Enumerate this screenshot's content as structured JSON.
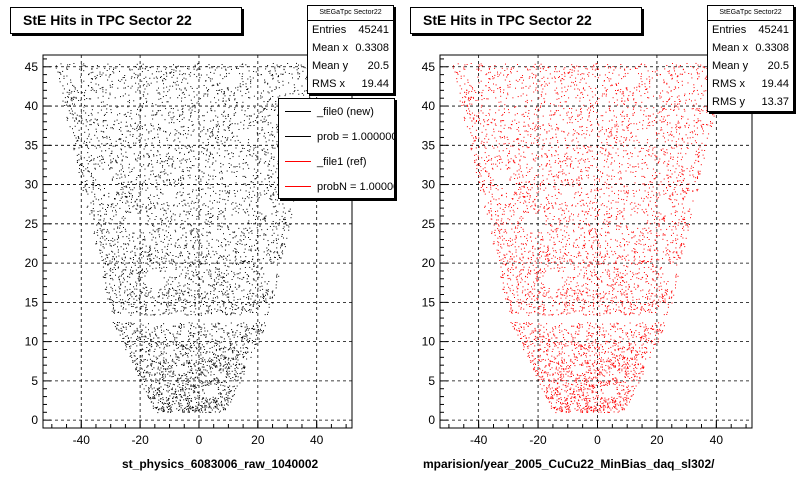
{
  "footer_text": "",
  "chart_data": [
    {
      "type": "scatter",
      "title": "StE Hits in TPC Sector 22",
      "xlabel": "st_physics_6083006_raw_1040002",
      "ylabel": "",
      "xlim": [
        -53,
        52
      ],
      "ylim": [
        -1,
        46.5
      ],
      "x_ticks": [
        -40,
        -20,
        0,
        20,
        40
      ],
      "y_ticks": [
        0,
        5,
        10,
        15,
        20,
        25,
        30,
        35,
        40,
        45
      ],
      "grid": true,
      "marker_color": "#000000",
      "stats": {
        "header": "StEGaTpc Sector22",
        "rows": [
          {
            "label": "Entries",
            "value": "45241"
          },
          {
            "label": "Mean x",
            "value": "0.3308"
          },
          {
            "label": "Mean y",
            "value": "20.5"
          },
          {
            "label": "RMS x",
            "value": "19.44"
          }
        ]
      },
      "legend": {
        "position": "top-right",
        "entries": [
          {
            "label": "_file0 (new)",
            "color": "#000000"
          },
          {
            "label": "prob = 1.000000",
            "color": "#000000"
          },
          {
            "label": "_file1 (ref)",
            "color": "#ff0000"
          },
          {
            "label": "probN = 1.000000",
            "color": "#ff0000"
          }
        ]
      }
    },
    {
      "type": "scatter",
      "title": "StE Hits in TPC Sector 22",
      "xlabel": "mparision/year_2005_CuCu22_MinBias_daq_sl302/",
      "ylabel": "",
      "xlim": [
        -53,
        52
      ],
      "ylim": [
        -1,
        46.5
      ],
      "x_ticks": [
        -40,
        -20,
        0,
        20,
        40
      ],
      "y_ticks": [
        0,
        5,
        10,
        15,
        20,
        25,
        30,
        35,
        40,
        45
      ],
      "grid": true,
      "marker_color": "#ff0000",
      "stats": {
        "header": "StEGaTpc Sector22",
        "rows": [
          {
            "label": "Entries",
            "value": "45241"
          },
          {
            "label": "Mean x",
            "value": "0.3308"
          },
          {
            "label": "Mean y",
            "value": "20.5"
          },
          {
            "label": "RMS x",
            "value": "19.44"
          },
          {
            "label": "RMS y",
            "value": "13.37"
          }
        ]
      }
    }
  ]
}
